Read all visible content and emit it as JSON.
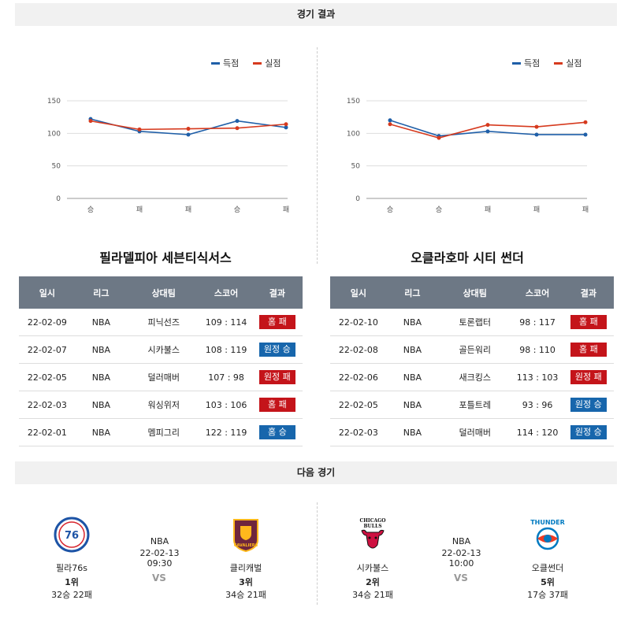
{
  "sections": {
    "results": "경기 결과",
    "next": "다음 경기"
  },
  "legend": {
    "scored": "득점",
    "conceded": "실점",
    "scored_color": "#1f5fa8",
    "conceded_color": "#d63a1e"
  },
  "teams": [
    {
      "name": "필라델피아 세븐티식서스",
      "chart_data": {
        "type": "line",
        "categories": [
          "승",
          "패",
          "패",
          "승",
          "패"
        ],
        "yticks": [
          0,
          50,
          100,
          150
        ],
        "ylim": [
          0,
          150
        ],
        "series": [
          {
            "name": "득점",
            "values": [
              122,
              103,
              98,
              119,
              109
            ]
          },
          {
            "name": "실점",
            "values": [
              119,
              106,
              107,
              108,
              114
            ]
          }
        ]
      },
      "headers": [
        "일시",
        "리그",
        "상대팀",
        "스코어",
        "결과"
      ],
      "games": [
        {
          "date": "22-02-09",
          "league": "NBA",
          "opponent": "피닉선즈",
          "score": "109 : 114",
          "result": "홈 패",
          "type": "loss"
        },
        {
          "date": "22-02-07",
          "league": "NBA",
          "opponent": "시카불스",
          "score": "108 : 119",
          "result": "원정 승",
          "type": "win"
        },
        {
          "date": "22-02-05",
          "league": "NBA",
          "opponent": "덜러매버",
          "score": "107 : 98",
          "result": "원정 패",
          "type": "loss"
        },
        {
          "date": "22-02-03",
          "league": "NBA",
          "opponent": "워싱위저",
          "score": "103 : 106",
          "result": "홈 패",
          "type": "loss"
        },
        {
          "date": "22-02-01",
          "league": "NBA",
          "opponent": "멤피그리",
          "score": "122 : 119",
          "result": "홈 승",
          "type": "win"
        }
      ]
    },
    {
      "name": "오클라호마 시티 썬더",
      "chart_data": {
        "type": "line",
        "categories": [
          "승",
          "승",
          "패",
          "패",
          "패"
        ],
        "yticks": [
          0,
          50,
          100,
          150
        ],
        "ylim": [
          0,
          150
        ],
        "series": [
          {
            "name": "득점",
            "values": [
              120,
              96,
              103,
              98,
              98
            ]
          },
          {
            "name": "실점",
            "values": [
              114,
              93,
              113,
              110,
              117
            ]
          }
        ]
      },
      "headers": [
        "일시",
        "리그",
        "상대팀",
        "스코어",
        "결과"
      ],
      "games": [
        {
          "date": "22-02-10",
          "league": "NBA",
          "opponent": "토론랩터",
          "score": "98 : 117",
          "result": "홈 패",
          "type": "loss"
        },
        {
          "date": "22-02-08",
          "league": "NBA",
          "opponent": "골든워리",
          "score": "98 : 110",
          "result": "홈 패",
          "type": "loss"
        },
        {
          "date": "22-02-06",
          "league": "NBA",
          "opponent": "새크킹스",
          "score": "113 : 103",
          "result": "원정 패",
          "type": "loss"
        },
        {
          "date": "22-02-05",
          "league": "NBA",
          "opponent": "포틀트레",
          "score": "93 : 96",
          "result": "원정 승",
          "type": "win"
        },
        {
          "date": "22-02-03",
          "league": "NBA",
          "opponent": "덜러매버",
          "score": "114 : 120",
          "result": "원정 승",
          "type": "win"
        }
      ]
    }
  ],
  "next_games": [
    {
      "league": "NBA",
      "datetime": "22-02-13 09:30",
      "vs": "VS",
      "home": {
        "name": "필라76s",
        "rank": "1위",
        "record": "32승 22패",
        "logo": "philadelphia-76ers-logo",
        "logo_text": "76ers"
      },
      "away": {
        "name": "클리캐벌",
        "rank": "3위",
        "record": "34승 21패",
        "logo": "cleveland-cavaliers-logo",
        "logo_text": "CAVALIERS"
      }
    },
    {
      "league": "NBA",
      "datetime": "22-02-13 10:00",
      "vs": "VS",
      "home": {
        "name": "시카불스",
        "rank": "2위",
        "record": "34승 21패",
        "logo": "chicago-bulls-logo",
        "logo_text": "CHICAGO BULLS"
      },
      "away": {
        "name": "오클썬더",
        "rank": "5위",
        "record": "17승 37패",
        "logo": "oklahoma-thunder-logo",
        "logo_text": "THUNDER"
      }
    }
  ]
}
